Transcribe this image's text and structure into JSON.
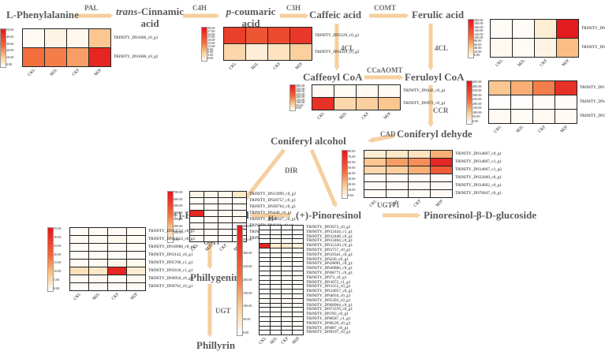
{
  "compounds": {
    "phenylalanine": "L-Phenylalanine",
    "cinnamic_prefix": "trans",
    "cinnamic_rest": "-Cinnamic",
    "cinnamic_line2": "acid",
    "coumaric_prefix": "p",
    "coumaric_rest": "-coumaric",
    "coumaric_line2": "acid",
    "caffeic": "Caffeic acid",
    "ferulic": "Ferulic acid",
    "caffeoyl_coa": "Caffeoyl CoA",
    "feruloyl_coa": "Feruloyl CoA",
    "coniferyl_dehyde": "Coniferyl dehyde",
    "coniferyl_alcohol": "Coniferyl alcohol",
    "epipinoresinol": "(+)-Epipinoresinol",
    "pinoresinol": "(+)-Pinoresinol",
    "pinoresinol_glucoside": "Pinoresinol-β-D-glucoside",
    "phillygenin": "Phillygenin",
    "phillyrin": "Phillyrin"
  },
  "enzymes": {
    "pal": "PAL",
    "c4h": "C4H",
    "c3h": "C3H",
    "comt": "COMT",
    "fourcl_a": "4CL",
    "fourcl_b": "4CL",
    "ccoaomt": "CCoAOMT",
    "ccr": "CCR",
    "cad": "CAD",
    "dir": "DIR",
    "ugt71": "UGT71",
    "h_plus": "H+",
    "omt": "OMT",
    "ugt": "UGT"
  },
  "samples": [
    "CKL",
    "M2L",
    "CKF",
    "M2F"
  ],
  "colors": {
    "arrow": "#f7d6ae",
    "arrow_stroke": "#efb679",
    "high": "#e8141c",
    "mid": "#f26d3a",
    "low": "#fbcf94",
    "zero": "#ffffff",
    "compound_text": "#5a5a5a"
  },
  "heatmaps": [
    {
      "id": "pal",
      "legend_ticks": [
        "50.00",
        "40.00",
        "30.00",
        "20.00",
        "10.00",
        "0.00"
      ],
      "genes": [
        "TRINITY_DN1686_c0_g1",
        "TRINITY_DN1686_c0_g2"
      ],
      "values": [
        [
          0.05,
          0.12,
          0.08,
          0.45
        ],
        [
          0.75,
          0.7,
          0.6,
          0.95
        ]
      ]
    },
    {
      "id": "c4h",
      "legend_ticks": [
        "30.00",
        "27.00",
        "24.00",
        "21.00",
        "18.00",
        "15.00",
        "12.00",
        "9.00",
        "6.00",
        "3.00",
        "0.00"
      ],
      "genes": [
        "TRINITY_DN5229_c0_g1",
        "TRINITY_DN4419_c0_g2"
      ],
      "values": [
        [
          0.88,
          0.82,
          0.85,
          0.9
        ],
        [
          0.35,
          0.18,
          0.28,
          0.4
        ]
      ]
    },
    {
      "id": "comt",
      "legend_ticks": [
        "200.00",
        "180.00",
        "160.00",
        "140.00",
        "120.00",
        "100.00",
        "80.00",
        "60.00",
        "40.00",
        "20.00",
        "0.00"
      ],
      "genes": [
        "TRINITY_DN5637_c0_g1",
        "TRINITY_DN6207_c0_g1"
      ],
      "values": [
        [
          0.03,
          0.04,
          0.2,
          0.98
        ],
        [
          0.06,
          0.05,
          0.12,
          0.5
        ]
      ]
    },
    {
      "id": "ccoaomt",
      "legend_ticks": [
        "400.00",
        "350.00",
        "300.00",
        "250.00",
        "200.00",
        "150.00",
        "100.00",
        "50.00",
        "0.00"
      ],
      "genes": [
        "TRINITY_DN442_c0_g1",
        "TRINITY_DN972_c0_g1"
      ],
      "values": [
        [
          0.05,
          0.04,
          0.06,
          0.05
        ],
        [
          0.92,
          0.35,
          0.4,
          0.45
        ]
      ]
    },
    {
      "id": "ccr",
      "legend_ticks": [
        "450.00",
        "400.00",
        "350.00",
        "300.00",
        "250.00",
        "200.00",
        "150.00",
        "100.00",
        "50.00",
        "0.00"
      ],
      "genes": [
        "TRINITY_DN13107_c0_g2",
        "TRINITY_DN43935_c0_g1",
        "TRINITY_DN734_c0_g1"
      ],
      "values": [
        [
          0.45,
          0.55,
          0.7,
          0.92
        ],
        [
          0.02,
          0.02,
          0.03,
          0.04
        ],
        [
          0.05,
          0.04,
          0.06,
          0.05
        ]
      ]
    },
    {
      "id": "dir",
      "legend_ticks": [
        "700.00",
        "600.00",
        "500.00",
        "400.00",
        "300.00",
        "200.00",
        "100.00",
        "0.00"
      ],
      "genes": [
        "TRINITY_DN13999_c0_g2",
        "TRINITY_DN20757_c0_g1",
        "TRINITY_DN30764_c0_g1",
        "TRINITY_DN448_c0_g1",
        "TRINITY_DN46327_c0_g1",
        "TRINITY_DN6226_c0_g1",
        "TRINITY_DN10012_c0_g1",
        "TRINITY_DN19661_c0_g1"
      ],
      "values": [
        [
          0.12,
          0.1,
          0.08,
          0.25
        ],
        [
          0.03,
          0.03,
          0.04,
          0.04
        ],
        [
          0.04,
          0.03,
          0.03,
          0.05
        ],
        [
          0.95,
          0.05,
          0.06,
          0.08
        ],
        [
          0.04,
          0.05,
          0.05,
          0.06
        ],
        [
          0.03,
          0.04,
          0.04,
          0.03
        ],
        [
          0.05,
          0.04,
          0.04,
          0.05
        ],
        [
          0.03,
          0.03,
          0.03,
          0.04
        ]
      ]
    },
    {
      "id": "cad",
      "legend_ticks": [
        "80.00",
        "70.00",
        "60.00",
        "50.00",
        "40.00",
        "30.00",
        "20.00",
        "10.00",
        "0.00"
      ],
      "genes": [
        "TRINITY_DN14607_c0_g1",
        "TRINITY_DN14607_c1_g1",
        "TRINITY_DN14607_c1_g2",
        "TRINITY_DN32609_c0_g1",
        "TRINITY_DN14692_c0_g1",
        "TRINITY_DN76847_c0_g1"
      ],
      "values": [
        [
          0.2,
          0.25,
          0.28,
          0.55
        ],
        [
          0.45,
          0.6,
          0.65,
          0.95
        ],
        [
          0.35,
          0.4,
          0.55,
          0.8
        ],
        [
          0.04,
          0.04,
          0.05,
          0.05
        ],
        [
          0.03,
          0.04,
          0.03,
          0.04
        ],
        [
          0.04,
          0.03,
          0.04,
          0.05
        ]
      ]
    },
    {
      "id": "omt",
      "legend_ticks": [
        "35.00",
        "30.00",
        "25.00",
        "20.00",
        "15.00",
        "10.00",
        "5.00",
        "0.00"
      ],
      "genes": [
        "TRINITY_DN13554_c0_g1",
        "TRINITY_DN13554_c0_g2",
        "TRINITY_DN18988_c0_g1",
        "TRINITY_DN3142_c0_g1",
        "TRINITY_DN5700_c1_g1",
        "TRINITY_DN5618_c1_g1",
        "TRINITY_DN6958_c0_g1",
        "TRINITY_DN8702_c0_g1"
      ],
      "values": [
        [
          0.04,
          0.05,
          0.05,
          0.04
        ],
        [
          0.05,
          0.06,
          0.08,
          0.05
        ],
        [
          0.03,
          0.04,
          0.03,
          0.04
        ],
        [
          0.04,
          0.05,
          0.04,
          0.05
        ],
        [
          0.06,
          0.05,
          0.1,
          0.08
        ],
        [
          0.3,
          0.25,
          0.95,
          0.2
        ],
        [
          0.05,
          0.06,
          0.05,
          0.06
        ],
        [
          0.04,
          0.05,
          0.04,
          0.05
        ]
      ]
    },
    {
      "id": "pinoresinol",
      "legend_ticks": [
        "400.00",
        "350.00",
        "300.00",
        "250.00",
        "200.00",
        "150.00",
        "100.00",
        "50.00",
        "0.00"
      ],
      "genes": [
        "TRINITY_DN1073_c0_g1",
        "TRINITY_DN12444_c1_g1",
        "TRINITY_DN12448_c0_g1",
        "TRINITY_DN13484_c0_g1",
        "TRINITY_DN15320_c0_g1",
        "TRINITY_DN1757_c0_g1",
        "TRINITY_DN19341_c0_g1",
        "TRINITY_DN220_c0_g1",
        "TRINITY_DN28001_c0_g1",
        "TRINITY_DN49884_c0_g1",
        "TRINITY_DN66771_c0_g1",
        "TRINITY_DN73_c0_g1",
        "TRINITY_DN1072_c1_g1",
        "TRINITY_DN1255_c0_g1",
        "TRINITY_DN14057_c0_g1",
        "TRINITY_DN4034_c0_g1",
        "TRINITY_DN5393_c0_g1",
        "TRINITY_DN69964_c0_g1",
        "TRINITY_DN73376_c0_g1",
        "TRINITY_DN783_c0_g1",
        "TRINITY_DN8587_c1_g1",
        "TRINITY_DN8539_c0_g1",
        "TRINITY_DN887_c0_g1",
        "TRINITY_DN9197_c0_g1"
      ],
      "values": [
        [
          0.02,
          0.03,
          0.02,
          0.03
        ],
        [
          0.03,
          0.02,
          0.03,
          0.02
        ],
        [
          0.02,
          0.02,
          0.03,
          0.02
        ],
        [
          0.03,
          0.03,
          0.02,
          0.03
        ],
        [
          0.95,
          0.2,
          0.25,
          0.15
        ],
        [
          0.03,
          0.04,
          0.03,
          0.03
        ],
        [
          0.04,
          0.03,
          0.04,
          0.03
        ],
        [
          0.03,
          0.02,
          0.03,
          0.03
        ],
        [
          0.02,
          0.03,
          0.02,
          0.02
        ],
        [
          0.03,
          0.03,
          0.04,
          0.03
        ],
        [
          0.02,
          0.02,
          0.03,
          0.02
        ],
        [
          0.03,
          0.03,
          0.02,
          0.03
        ],
        [
          0.04,
          0.03,
          0.03,
          0.04
        ],
        [
          0.03,
          0.02,
          0.03,
          0.02
        ],
        [
          0.02,
          0.03,
          0.02,
          0.03
        ],
        [
          0.06,
          0.04,
          0.05,
          0.04
        ],
        [
          0.03,
          0.03,
          0.02,
          0.03
        ],
        [
          0.04,
          0.05,
          0.03,
          0.04
        ],
        [
          0.03,
          0.02,
          0.03,
          0.02
        ],
        [
          0.02,
          0.03,
          0.02,
          0.03
        ],
        [
          0.03,
          0.03,
          0.04,
          0.03
        ],
        [
          0.02,
          0.02,
          0.02,
          0.03
        ],
        [
          0.03,
          0.03,
          0.02,
          0.02
        ],
        [
          0.02,
          0.03,
          0.03,
          0.02
        ]
      ]
    }
  ]
}
